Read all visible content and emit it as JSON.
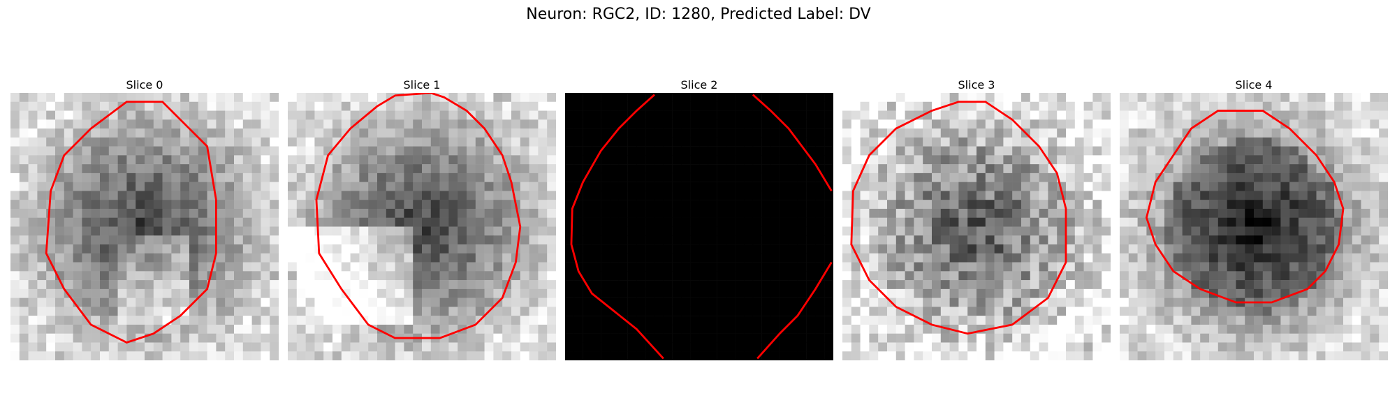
{
  "figure": {
    "title": "Neuron: RGC2, ID: 1280, Predicted Label: DV",
    "slices": [
      {
        "title": "Slice 0",
        "style": "cell",
        "seed": 11
      },
      {
        "title": "Slice 1",
        "style": "cell-bright-left",
        "seed": 23
      },
      {
        "title": "Slice 2",
        "style": "black",
        "seed": 5
      },
      {
        "title": "Slice 3",
        "style": "cell-noisy",
        "seed": 37
      },
      {
        "title": "Slice 4",
        "style": "cell-dark-center",
        "seed": 41
      }
    ],
    "contour_color": "#ff0000"
  }
}
